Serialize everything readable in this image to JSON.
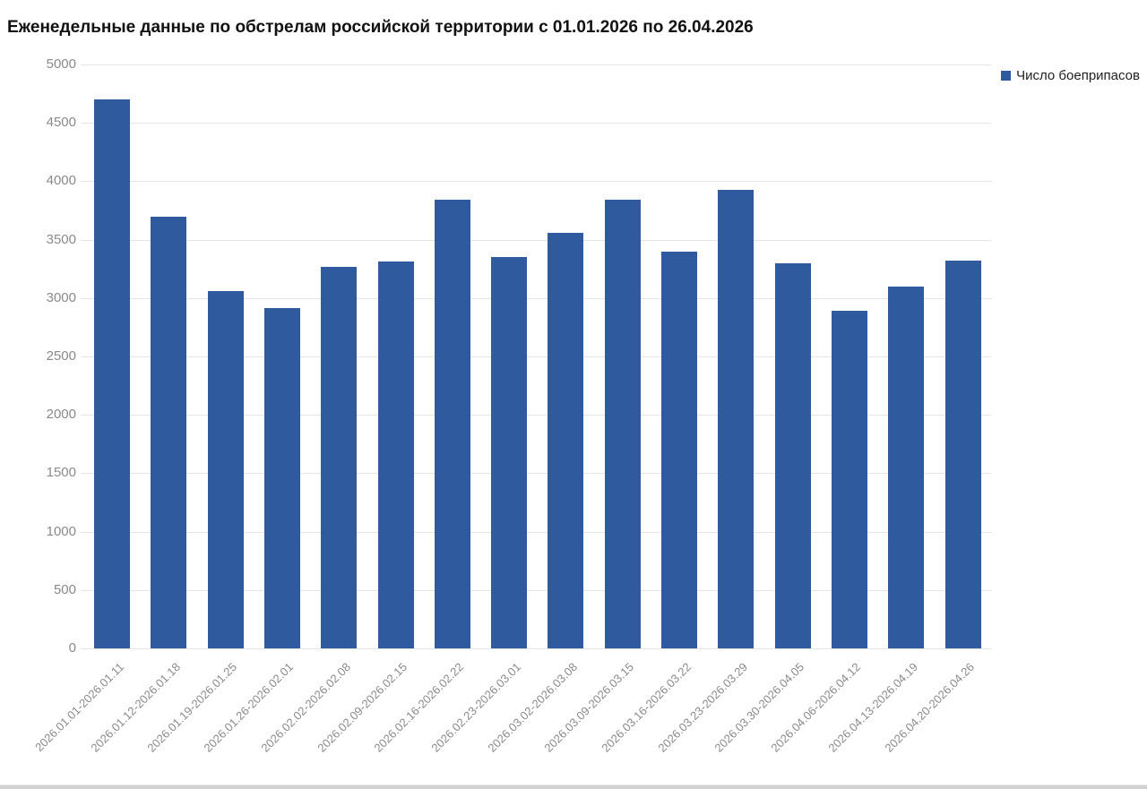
{
  "chart_data": {
    "type": "bar",
    "title": "Еженедельные данные по обстрелам российской территории с 01.01.2026 по 26.04.2026",
    "categories": [
      "2026.01.01-2026.01.11",
      "2026.01.12-2026.01.18",
      "2026.01.19-2026.01.25",
      "2026.01.26-2026.02.01",
      "2026.02.02-2026.02.08",
      "2026.02.09-2026.02.15",
      "2026.02.16-2026.02.22",
      "2026.02.23-2026.03.01",
      "2026.03.02-2026.03.08",
      "2026.03.09-2026.03.15",
      "2026.03.16-2026.03.22",
      "2026.03.23-2026.03.29",
      "2026.03.30-2026.04.05",
      "2026.04.06-2026.04.12",
      "2026.04.13-2026.04.19",
      "2026.04.20-2026.04.26"
    ],
    "series": [
      {
        "name": "Число боеприпасов",
        "values": [
          4700,
          3695,
          3060,
          2915,
          3270,
          3315,
          3840,
          3350,
          3555,
          3845,
          3400,
          3925,
          3300,
          2890,
          3100,
          3320
        ]
      }
    ],
    "xlabel": "",
    "ylabel": "",
    "ylim": [
      0,
      5000
    ],
    "yticks": [
      0,
      500,
      1000,
      1500,
      2000,
      2500,
      3000,
      3500,
      4000,
      4500,
      5000
    ],
    "grid": "horizontal",
    "legend_position": "top-right"
  },
  "colors": {
    "bar": "#2f5a9e",
    "grid": "#e5e5e5",
    "axis_text": "#8a8a8a",
    "title_text": "#111111",
    "legend_text": "#1f1f1f"
  }
}
